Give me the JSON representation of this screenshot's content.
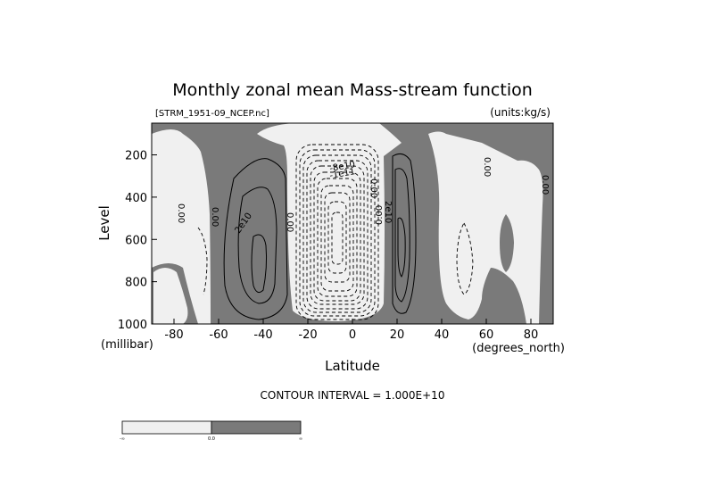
{
  "title": "Monthly zonal mean Mass-stream function",
  "file_label": "[STRM_1951-09_NCEP.nc]",
  "units_label": "(units:kg/s)",
  "contour_interval_text": "CONTOUR INTERVAL = 1.000E+10",
  "colors": {
    "positive_fill": "#7a7a7a",
    "negative_fill": "#f0f0f0",
    "line": "#000000"
  },
  "colorbar": {
    "labels": [
      "-∞",
      "0.0",
      "∞"
    ]
  },
  "chart_data": {
    "type": "contour",
    "title": "Monthly zonal mean Mass-stream function",
    "xlabel": "Latitude",
    "x_unit_label": "(degrees_north)",
    "ylabel": "Level",
    "y_unit_label": "(millibar)",
    "xlim": [
      -90,
      90
    ],
    "ylim": [
      1000,
      50
    ],
    "y_axis_inverted": true,
    "xticks": [
      "-80",
      "-60",
      "-40",
      "-20",
      "0",
      "20",
      "40",
      "60",
      "80"
    ],
    "xtick_values": [
      -80,
      -60,
      -40,
      -20,
      0,
      20,
      40,
      60,
      80
    ],
    "yticks": [
      "200",
      "400",
      "600",
      "800",
      "1000"
    ],
    "ytick_values": [
      200,
      400,
      600,
      800,
      1000
    ],
    "contour_interval": 10000000000,
    "contour_labels": [
      "0.00",
      "0.00",
      "2e10",
      "0.00",
      "-8e10",
      "-1e11",
      "0.00",
      "2e10",
      "0.00",
      "0.00",
      "0.00"
    ],
    "cells": [
      {
        "sign": "negative",
        "center_lat": -80,
        "center_level": 400,
        "peak": -10000000000.0
      },
      {
        "sign": "positive",
        "center_lat": -40,
        "center_level": 650,
        "peak": 40000000000.0
      },
      {
        "sign": "negative",
        "center_lat": 0,
        "center_level": 500,
        "peak": -130000000000.0
      },
      {
        "sign": "positive",
        "center_lat": 20,
        "center_level": 550,
        "peak": 40000000000.0
      },
      {
        "sign": "negative",
        "center_lat": 55,
        "center_level": 650,
        "peak": -10000000000.0
      },
      {
        "sign": "positive",
        "center_lat": 68,
        "center_level": 650,
        "peak": 10000000000.0
      }
    ]
  }
}
